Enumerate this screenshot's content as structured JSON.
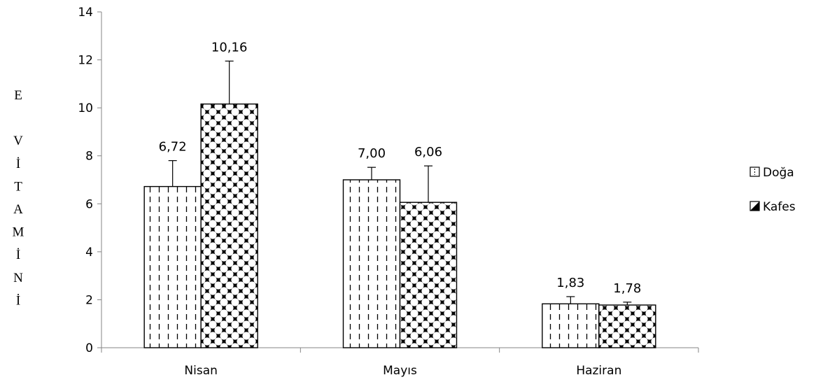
{
  "chart_data": {
    "type": "bar",
    "title": "",
    "xlabel": "",
    "ylabel": "E VİTAMİNİ",
    "ylabel_chars": [
      "E",
      "",
      "V",
      "İ",
      "T",
      "A",
      "M",
      "İ",
      "N",
      "İ"
    ],
    "categories": [
      "Nisan",
      "Mayıs",
      "Haziran"
    ],
    "ylim": [
      0,
      14
    ],
    "yticks": [
      0,
      2,
      4,
      6,
      8,
      10,
      12,
      14
    ],
    "grid": false,
    "legend_position": "right",
    "series": [
      {
        "name": "Doğa",
        "values": [
          6.72,
          7.0,
          1.83
        ],
        "labels": [
          "6,72",
          "7,00",
          "1,83"
        ],
        "error": [
          1.08,
          0.52,
          0.3
        ],
        "pattern": "dashed-vertical"
      },
      {
        "name": "Kafes",
        "values": [
          10.16,
          6.06,
          1.78
        ],
        "labels": [
          "10,16",
          "6,06",
          "1,78"
        ],
        "error": [
          1.79,
          1.52,
          0.12
        ],
        "pattern": "checker-diamond"
      }
    ]
  }
}
